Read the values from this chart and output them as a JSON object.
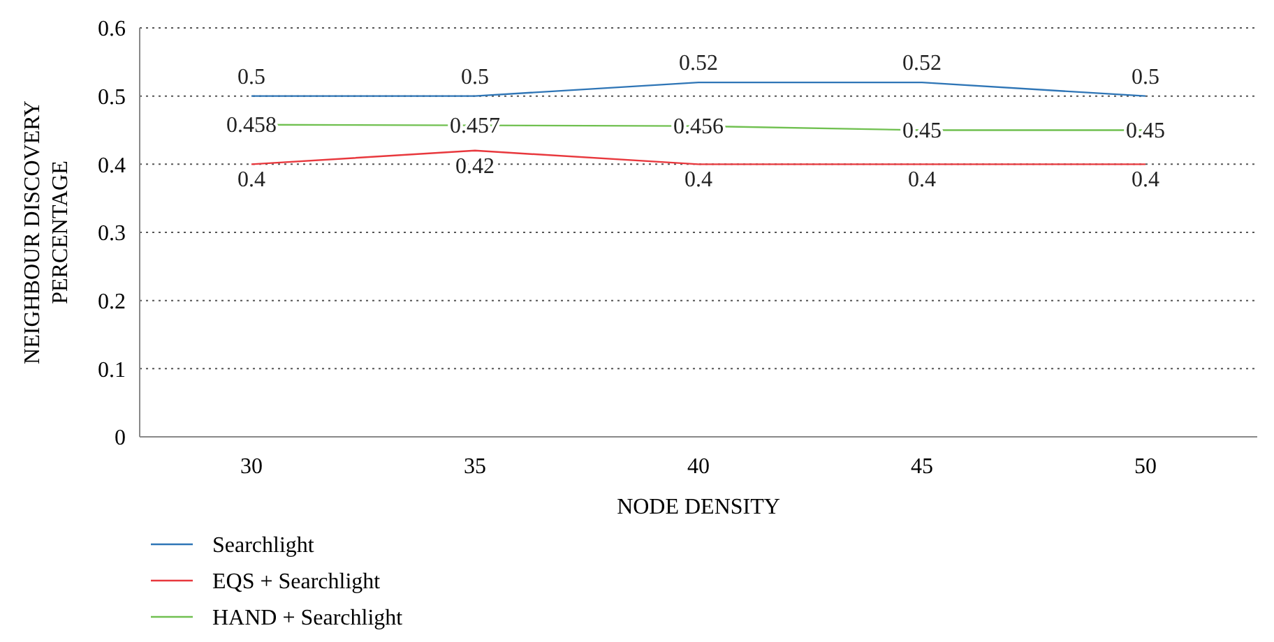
{
  "chart_data": {
    "type": "line",
    "xlabel": "NODE DENSITY",
    "ylabel": "NEIGHBOUR DISCOVERY PERCENTAGE",
    "categories": [
      "30",
      "35",
      "40",
      "45",
      "50"
    ],
    "series": [
      {
        "name": "Searchlight",
        "color": "#2e75b6",
        "values": [
          0.5,
          0.5,
          0.52,
          0.52,
          0.5
        ]
      },
      {
        "name": "EQS + Searchlight",
        "color": "#e8383d",
        "values": [
          0.4,
          0.42,
          0.4,
          0.4,
          0.4
        ]
      },
      {
        "name": "HAND + Searchlight",
        "color": "#70c050",
        "values": [
          0.458,
          0.457,
          0.456,
          0.45,
          0.45
        ]
      }
    ],
    "ylim": [
      0,
      0.6
    ],
    "yticks": [
      0,
      0.1,
      0.2,
      0.3,
      0.4,
      0.5,
      0.6
    ],
    "grid": "y",
    "legend": "bottom left",
    "data_labels": true,
    "line_style": "solid"
  }
}
